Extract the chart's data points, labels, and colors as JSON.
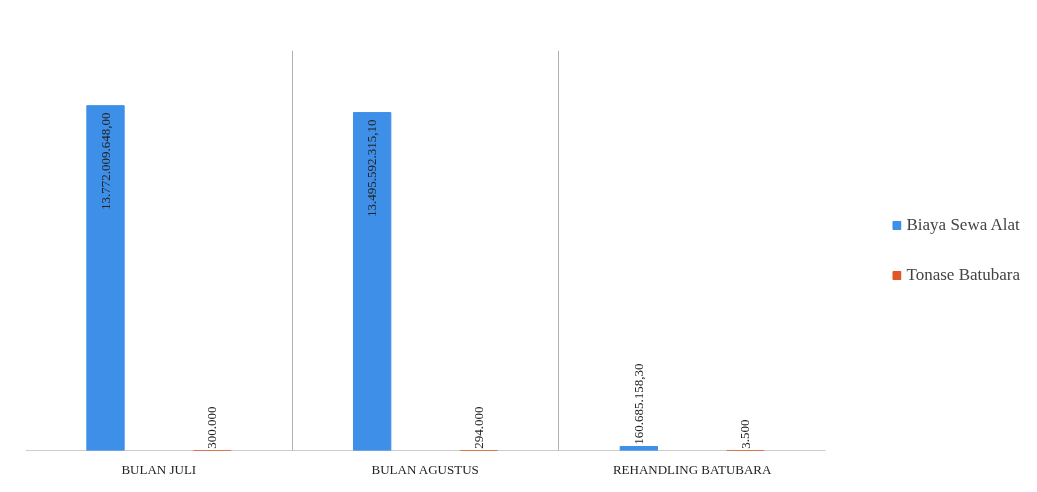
{
  "chart_data": {
    "type": "bar",
    "categories": [
      "BULAN JULI",
      "BULAN AGUSTUS",
      "REHANDLING BATUBARA"
    ],
    "series": [
      {
        "name": "Biaya Sewa Alat",
        "color": "#3d8fe8",
        "values": [
          13772009648.0,
          13495592315.1,
          160685158.3
        ],
        "value_labels": [
          "13.772.009.648,00",
          "13.495.592.315,10",
          "160.685.158,30"
        ]
      },
      {
        "name": "Tonase Batubara",
        "color": "#e0582a",
        "values": [
          300000,
          294000,
          3500
        ],
        "value_labels": [
          "300.000",
          "294.000",
          "3.500"
        ]
      }
    ],
    "grid": "x",
    "legend": "right"
  }
}
